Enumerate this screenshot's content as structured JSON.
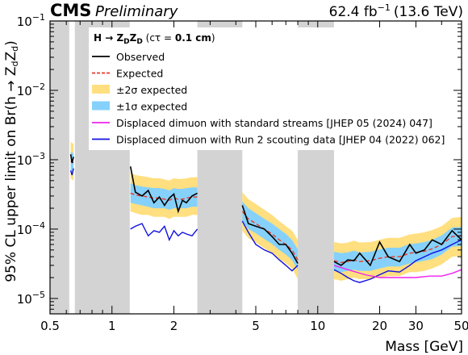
{
  "header": {
    "experiment": "CMS",
    "status": "Preliminary",
    "lumi_prefix": "62.4 fb",
    "lumi_exp": "−1",
    "energy": "(13.6 TeV)"
  },
  "chart_data": {
    "type": "line",
    "xlabel": "Mass [GeV]",
    "ylabel_parts": [
      "95% CL upper limit on Br(h → Z",
      "d",
      "Z",
      "d",
      ")"
    ],
    "xscale": "log",
    "yscale": "log",
    "xlim": [
      0.5,
      50
    ],
    "ylim": [
      6e-06,
      0.1
    ],
    "xticks": [
      0.5,
      1,
      2,
      5,
      10,
      20,
      30,
      50
    ],
    "xtick_labels": [
      "0.5",
      "1",
      "2",
      "5",
      "10",
      "20",
      "30",
      "50"
    ],
    "yticks": [
      1e-05,
      0.0001,
      0.001,
      0.01,
      0.1
    ],
    "ytick_labels": [
      {
        "base": "10",
        "exp": "−5"
      },
      {
        "base": "10",
        "exp": "−4"
      },
      {
        "base": "10",
        "exp": "−3"
      },
      {
        "base": "10",
        "exp": "−2"
      },
      {
        "base": "10",
        "exp": "−1"
      }
    ],
    "vetoed_mass_ranges": [
      [
        0.5,
        0.62
      ],
      [
        0.66,
        1.22
      ],
      [
        2.6,
        4.3
      ],
      [
        8.0,
        12.0
      ]
    ],
    "vetoed_color": "#d3d3d3",
    "legend": {
      "title": "H → Z_D Z_D (cτ = 0.1 cm)",
      "title_parts": [
        "H → Z",
        "D",
        "Z",
        "D",
        " (cτ = ",
        "0.1 cm",
        ")"
      ],
      "placement": "top-center",
      "entries": [
        {
          "label": "Observed",
          "style": "line",
          "color": "#000000"
        },
        {
          "label": "Expected",
          "style": "dashed",
          "color": "#e8392b"
        },
        {
          "label": "±2σ expected",
          "style": "band",
          "color": "#ffdf7f"
        },
        {
          "label": "±1σ expected",
          "style": "band",
          "color": "#85d1fb"
        },
        {
          "label": "Displaced dimuon with standard streams [JHEP 05 (2024) 047]",
          "style": "line",
          "color": "#ee22ee"
        },
        {
          "label": "Displaced dimuon with Run 2 scouting data [JHEP 04 (2022) 062]",
          "style": "line",
          "color": "#1010e0"
        }
      ]
    },
    "segments": [
      {
        "x": [
          0.63,
          0.64,
          0.65
        ],
        "expected": [
          0.00095,
          0.00093,
          0.0009
        ],
        "observed": [
          0.0012,
          0.0009,
          0.0011
        ],
        "band1": [
          [
            0.0007,
            0.0013
          ],
          [
            0.00068,
            0.00127
          ],
          [
            0.00066,
            0.00123
          ]
        ],
        "band2": [
          [
            0.00054,
            0.0018
          ],
          [
            0.00052,
            0.00175
          ],
          [
            0.0005,
            0.0017
          ]
        ],
        "run2": [
          0.0007,
          0.0006,
          0.00075
        ]
      },
      {
        "x": [
          1.23,
          1.3,
          1.4,
          1.5,
          1.6,
          1.7,
          1.8,
          1.9,
          2.0,
          2.1,
          2.2,
          2.3,
          2.45,
          2.6
        ],
        "expected": [
          0.00033,
          0.00031,
          0.0003,
          0.00029,
          0.00028,
          0.00028,
          0.00027,
          0.00026,
          0.00028,
          0.00027,
          0.00027,
          0.00028,
          0.00029,
          0.00029
        ],
        "observed": [
          0.0008,
          0.00034,
          0.0003,
          0.00036,
          0.00024,
          0.00029,
          0.00022,
          0.00028,
          0.00032,
          0.00018,
          0.00026,
          0.00024,
          0.0003,
          0.00033
        ],
        "band1": [
          [
            0.00024,
            0.00046
          ],
          [
            0.00023,
            0.00043
          ],
          [
            0.00022,
            0.00041
          ],
          [
            0.00021,
            0.0004
          ],
          [
            0.0002,
            0.00039
          ],
          [
            0.0002,
            0.00039
          ],
          [
            0.0002,
            0.00038
          ],
          [
            0.00019,
            0.00036
          ],
          [
            0.0002,
            0.00039
          ],
          [
            0.0002,
            0.00038
          ],
          [
            0.0002,
            0.00038
          ],
          [
            0.0002,
            0.00039
          ],
          [
            0.00021,
            0.0004
          ],
          [
            0.00021,
            0.0004
          ]
        ],
        "band2": [
          [
            0.00018,
            0.00065
          ],
          [
            0.00017,
            0.0006
          ],
          [
            0.00016,
            0.00058
          ],
          [
            0.00016,
            0.00056
          ],
          [
            0.00015,
            0.00054
          ],
          [
            0.00015,
            0.00054
          ],
          [
            0.00015,
            0.00052
          ],
          [
            0.00014,
            0.0005
          ],
          [
            0.00015,
            0.00054
          ],
          [
            0.00015,
            0.00053
          ],
          [
            0.00015,
            0.00053
          ],
          [
            0.00015,
            0.00054
          ],
          [
            0.00016,
            0.00056
          ],
          [
            0.00016,
            0.00056
          ]
        ],
        "run2": [
          0.0001,
          0.00011,
          0.00012,
          8e-05,
          9.5e-05,
          9e-05,
          0.00011,
          7e-05,
          9.5e-05,
          8e-05,
          9e-05,
          8.5e-05,
          8e-05,
          0.0001
        ]
      },
      {
        "x": [
          4.3,
          4.6,
          5.0,
          5.5,
          6.0,
          6.5,
          7.0,
          7.5,
          8.0
        ],
        "expected": [
          0.00018,
          0.00014,
          0.00012,
          0.0001,
          8.5e-05,
          7e-05,
          6e-05,
          5e-05,
          3.6e-05
        ],
        "observed": [
          0.00022,
          0.00012,
          0.00011,
          0.0001,
          7.8e-05,
          6e-05,
          6e-05,
          4.5e-05,
          3.2e-05
        ],
        "band1": [
          [
            0.00013,
            0.00025
          ],
          [
            0.0001,
            0.0002
          ],
          [
            8.7e-05,
            0.00017
          ],
          [
            7.2e-05,
            0.00014
          ],
          [
            6.1e-05,
            0.00012
          ],
          [
            5e-05,
            0.0001
          ],
          [
            4.3e-05,
            8.5e-05
          ],
          [
            3.6e-05,
            7e-05
          ],
          [
            2.6e-05,
            5.1e-05
          ]
        ],
        "band2": [
          [
            9.5e-05,
            0.00034
          ],
          [
            7.4e-05,
            0.00027
          ],
          [
            6.4e-05,
            0.00023
          ],
          [
            5.3e-05,
            0.00019
          ],
          [
            4.5e-05,
            0.00016
          ],
          [
            3.7e-05,
            0.00013
          ],
          [
            3.2e-05,
            0.00011
          ],
          [
            2.7e-05,
            9.5e-05
          ],
          [
            1.9e-05,
            7e-05
          ]
        ],
        "run2": [
          0.00013,
          9e-05,
          6e-05,
          5e-05,
          4.5e-05,
          3.6e-05,
          3e-05,
          2.5e-05,
          3e-05
        ]
      },
      {
        "x": [
          12.0,
          13.0,
          14.0,
          15.0,
          16.0,
          18.0,
          20.0,
          22.0,
          25.0,
          28.0,
          30.0,
          33.0,
          36.0,
          40.0,
          45.0,
          50.0
        ],
        "expected": [
          3.5e-05,
          3.3e-05,
          3.4e-05,
          3.6e-05,
          3.4e-05,
          3.5e-05,
          3.8e-05,
          4e-05,
          4e-05,
          4.5e-05,
          4.6e-05,
          4.8e-05,
          5.2e-05,
          6e-05,
          7.8e-05,
          8e-05
        ],
        "observed": [
          3.4e-05,
          3e-05,
          3.6e-05,
          3.5e-05,
          4.5e-05,
          3e-05,
          6.5e-05,
          4e-05,
          3.4e-05,
          6e-05,
          4.5e-05,
          5e-05,
          7e-05,
          6e-05,
          9.5e-05,
          7e-05
        ],
        "band1": [
          [
            2.5e-05,
            4.7e-05
          ],
          [
            2.4e-05,
            4.5e-05
          ],
          [
            2.5e-05,
            4.6e-05
          ],
          [
            2.6e-05,
            4.9e-05
          ],
          [
            2.5e-05,
            4.6e-05
          ],
          [
            2.5e-05,
            4.7e-05
          ],
          [
            2.7e-05,
            5.1e-05
          ],
          [
            2.9e-05,
            5.4e-05
          ],
          [
            2.9e-05,
            5.4e-05
          ],
          [
            3.2e-05,
            6.1e-05
          ],
          [
            3.3e-05,
            6.2e-05
          ],
          [
            3.5e-05,
            6.5e-05
          ],
          [
            3.7e-05,
            7e-05
          ],
          [
            4.3e-05,
            8.1e-05
          ],
          [
            5.6e-05,
            0.000105
          ],
          [
            5.7e-05,
            0.000108
          ]
        ],
        "band2": [
          [
            1.9e-05,
            6.5e-05
          ],
          [
            1.8e-05,
            6.2e-05
          ],
          [
            1.9e-05,
            6.4e-05
          ],
          [
            2e-05,
            6.8e-05
          ],
          [
            1.9e-05,
            6.4e-05
          ],
          [
            1.9e-05,
            6.5e-05
          ],
          [
            2e-05,
            7e-05
          ],
          [
            2.1e-05,
            7.5e-05
          ],
          [
            2.1e-05,
            7.5e-05
          ],
          [
            2.4e-05,
            8.4e-05
          ],
          [
            2.4e-05,
            8.6e-05
          ],
          [
            2.5e-05,
            9e-05
          ],
          [
            2.7e-05,
            9.7e-05
          ],
          [
            3.1e-05,
            0.00011
          ],
          [
            4e-05,
            0.000145
          ],
          [
            4.1e-05,
            0.00015
          ]
        ],
        "run2": [
          2.6e-05,
          2.3e-05,
          2e-05,
          1.8e-05,
          1.7e-05,
          1.9e-05,
          2.2e-05,
          2.5e-05,
          2.4e-05,
          3e-05,
          3.5e-05,
          4e-05,
          4.5e-05,
          5e-05,
          6e-05,
          7e-05
        ]
      }
    ],
    "standard_streams": {
      "x": [
        12.0,
        14.0,
        17.0,
        20.0,
        25.0,
        30.0,
        35.0,
        40.0,
        45.0,
        50.0
      ],
      "y": [
        3e-05,
        2.6e-05,
        2.2e-05,
        2e-05,
        2e-05,
        2e-05,
        2.1e-05,
        2.1e-05,
        2.3e-05,
        2.6e-05
      ]
    }
  }
}
